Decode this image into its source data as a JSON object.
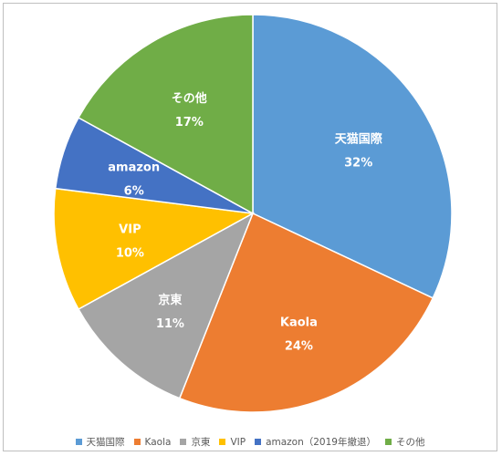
{
  "chart_data": {
    "type": "pie",
    "slices": [
      {
        "name": "天猫国際",
        "legend": "天猫国際",
        "value": 32,
        "label": "32%",
        "color": "#5B9BD5"
      },
      {
        "name": "Kaola",
        "legend": "Kaola",
        "value": 24,
        "label": "24%",
        "color": "#ED7D31"
      },
      {
        "name": "京東",
        "legend": "京東",
        "value": 11,
        "label": "11%",
        "color": "#A5A5A5"
      },
      {
        "name": "VIP",
        "legend": "VIP",
        "value": 10,
        "label": "10%",
        "color": "#FFC000"
      },
      {
        "name": "amazon",
        "legend": "amazon（2019年撤退）",
        "value": 6,
        "label": "6%",
        "color": "#4472C4"
      },
      {
        "name": "その他",
        "legend": "その他",
        "value": 17,
        "label": "17%",
        "color": "#70AD47"
      }
    ],
    "legend_position": "bottom"
  }
}
